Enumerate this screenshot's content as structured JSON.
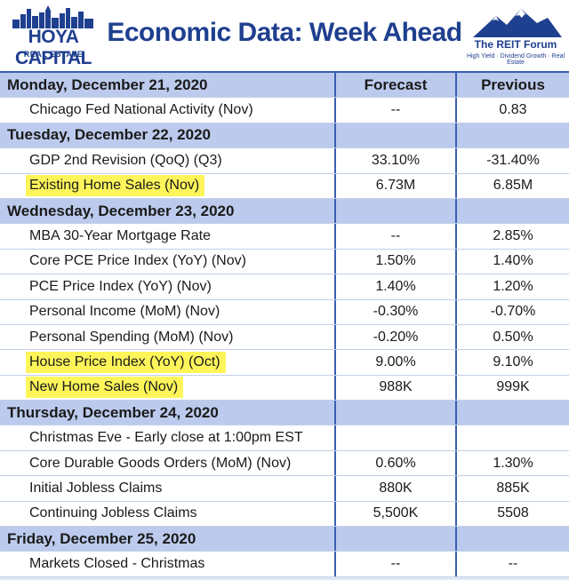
{
  "header": {
    "left_logo": {
      "brand": "HOYA CAPITAL",
      "sub": "REAL ESTATE"
    },
    "title": "Economic Data: Week Ahead",
    "right_logo": {
      "brand": "The REIT Forum",
      "sub": "High Yield · Dividend Growth · Real Estate"
    }
  },
  "columns": {
    "forecast": "Forecast",
    "previous": "Previous"
  },
  "rows": [
    {
      "type": "day",
      "label": "Monday, December 21, 2020",
      "forecast": "Forecast",
      "previous": "Previous"
    },
    {
      "type": "item",
      "label": "Chicago Fed National Activity (Nov)",
      "forecast": "--",
      "previous": "0.83",
      "highlight": false
    },
    {
      "type": "day",
      "label": "Tuesday, December 22, 2020",
      "forecast": "",
      "previous": ""
    },
    {
      "type": "item",
      "label": "GDP 2nd Revision (QoQ) (Q3)",
      "forecast": "33.10%",
      "previous": "-31.40%",
      "highlight": false
    },
    {
      "type": "item",
      "label": "Existing Home Sales (Nov)",
      "forecast": "6.73M",
      "previous": "6.85M",
      "highlight": true
    },
    {
      "type": "day",
      "label": "Wednesday, December 23, 2020",
      "forecast": "",
      "previous": ""
    },
    {
      "type": "item",
      "label": "MBA 30-Year Mortgage Rate",
      "forecast": "--",
      "previous": "2.85%",
      "highlight": false
    },
    {
      "type": "item",
      "label": "Core PCE Price Index (YoY) (Nov)",
      "forecast": "1.50%",
      "previous": "1.40%",
      "highlight": false
    },
    {
      "type": "item",
      "label": "PCE Price Index (YoY) (Nov)",
      "forecast": "1.40%",
      "previous": "1.20%",
      "highlight": false
    },
    {
      "type": "item",
      "label": "Personal Income (MoM) (Nov)",
      "forecast": "-0.30%",
      "previous": "-0.70%",
      "highlight": false
    },
    {
      "type": "item",
      "label": "Personal Spending (MoM) (Nov)",
      "forecast": "-0.20%",
      "previous": "0.50%",
      "highlight": false
    },
    {
      "type": "item",
      "label": "House Price Index (YoY) (Oct)",
      "forecast": "9.00%",
      "previous": "9.10%",
      "highlight": true
    },
    {
      "type": "item",
      "label": "New Home Sales (Nov)",
      "forecast": "988K",
      "previous": "999K",
      "highlight": true
    },
    {
      "type": "day",
      "label": "Thursday, December 24, 2020",
      "forecast": "",
      "previous": ""
    },
    {
      "type": "item",
      "label": "Christmas Eve - Early close at 1:00pm EST",
      "forecast": "",
      "previous": "",
      "highlight": false
    },
    {
      "type": "item",
      "label": "Core Durable Goods Orders (MoM) (Nov)",
      "forecast": "0.60%",
      "previous": "1.30%",
      "highlight": false
    },
    {
      "type": "item",
      "label": "Initial Jobless Claims",
      "forecast": "880K",
      "previous": "885K",
      "highlight": false
    },
    {
      "type": "item",
      "label": "Continuing Jobless Claims",
      "forecast": "5,500K",
      "previous": "5508",
      "highlight": false
    },
    {
      "type": "day",
      "label": "Friday, December 25, 2020",
      "forecast": "",
      "previous": ""
    },
    {
      "type": "item",
      "label": "Markets Closed - Christmas",
      "forecast": "--",
      "previous": "--",
      "highlight": false
    }
  ],
  "colors": {
    "accent": "#1f3f8f",
    "day_row": "#bccbed",
    "highlight": "#fdf55a"
  }
}
